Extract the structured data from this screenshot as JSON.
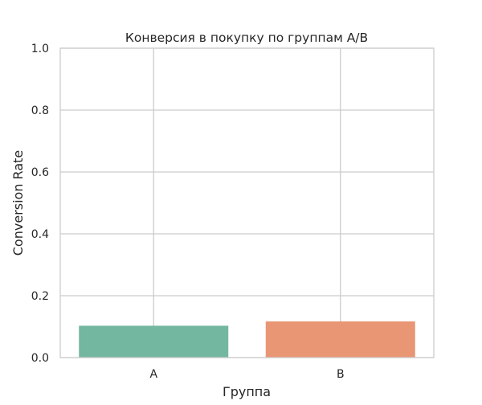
{
  "chart_data": {
    "type": "bar",
    "title": "Конверсия в покупку по группам A/B",
    "xlabel": "Группа",
    "ylabel": "Conversion Rate",
    "categories": [
      "A",
      "B"
    ],
    "values": [
      0.103,
      0.117
    ],
    "ylim": [
      0,
      1.0
    ],
    "yticks": [
      0.0,
      0.2,
      0.4,
      0.6,
      0.8,
      1.0
    ],
    "ytick_labels": [
      "0.0",
      "0.2",
      "0.4",
      "0.6",
      "0.8",
      "1.0"
    ],
    "colors": [
      "#74b7a0",
      "#e99675"
    ],
    "grid": true,
    "frame_color": "#cccccc",
    "grid_color": "#cccccc"
  }
}
